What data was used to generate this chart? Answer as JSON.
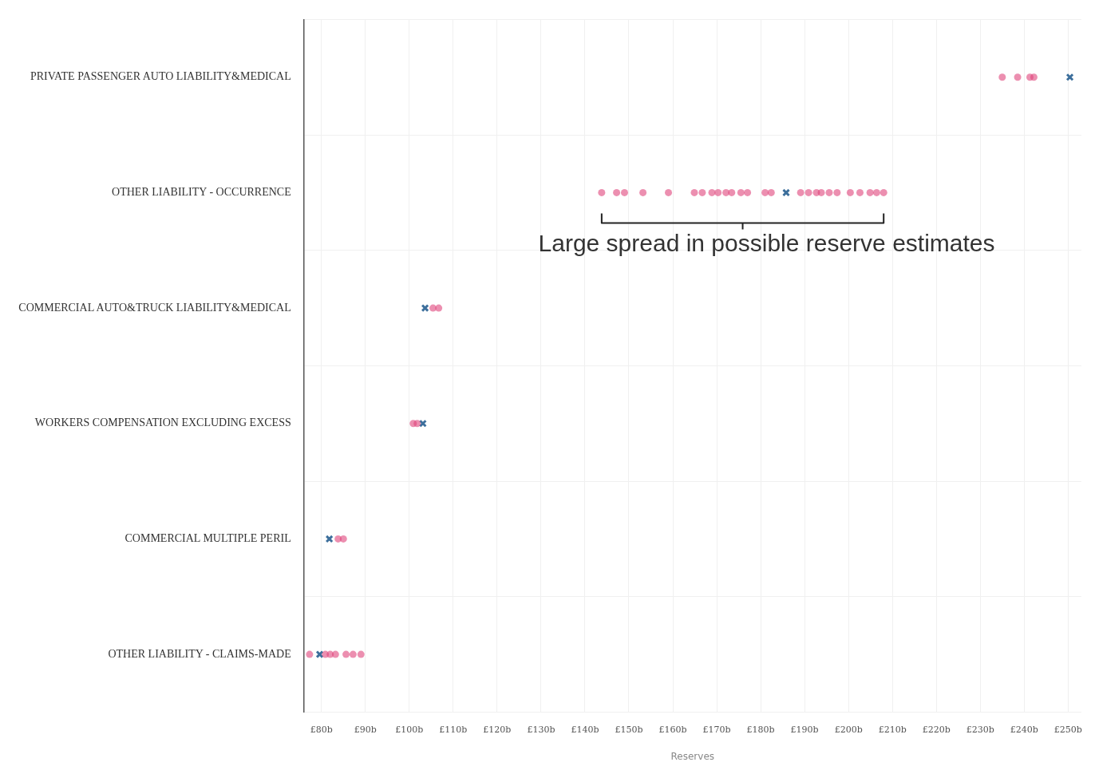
{
  "chart_data": {
    "type": "scatter",
    "orientation": "horizontal",
    "xlabel": "Reserves",
    "categories": [
      "PRIVATE PASSENGER AUTO LIABILITY&MEDICAL",
      "OTHER LIABILITY - OCCURRENCE",
      "COMMERCIAL AUTO&TRUCK LIABILITY&MEDICAL",
      "WORKERS COMPENSATION EXCLUDING EXCESS",
      "COMMERCIAL MULTIPLE PERIL",
      "OTHER LIABILITY - CLAIMS-MADE"
    ],
    "series": [
      {
        "color": "#e0457b",
        "marker": "circle",
        "x": [
          "PRIVATE PASSENGER AUTO LIABILITY&MEDICAL",
          "PRIVATE PASSENGER AUTO LIABILITY&MEDICAL",
          "PRIVATE PASSENGER AUTO LIABILITY&MEDICAL",
          "PRIVATE PASSENGER AUTO LIABILITY&MEDICAL",
          "OTHER LIABILITY - OCCURRENCE",
          "OTHER LIABILITY - OCCURRENCE",
          "OTHER LIABILITY - OCCURRENCE",
          "OTHER LIABILITY - OCCURRENCE",
          "OTHER LIABILITY - OCCURRENCE",
          "OTHER LIABILITY - OCCURRENCE",
          "OTHER LIABILITY - OCCURRENCE",
          "OTHER LIABILITY - OCCURRENCE",
          "OTHER LIABILITY - OCCURRENCE",
          "OTHER LIABILITY - OCCURRENCE",
          "OTHER LIABILITY - OCCURRENCE",
          "OTHER LIABILITY - OCCURRENCE",
          "OTHER LIABILITY - OCCURRENCE",
          "OTHER LIABILITY - OCCURRENCE",
          "OTHER LIABILITY - OCCURRENCE",
          "OTHER LIABILITY - OCCURRENCE",
          "OTHER LIABILITY - OCCURRENCE",
          "OTHER LIABILITY - OCCURRENCE",
          "OTHER LIABILITY - OCCURRENCE",
          "OTHER LIABILITY - OCCURRENCE",
          "OTHER LIABILITY - OCCURRENCE",
          "OTHER LIABILITY - OCCURRENCE",
          "OTHER LIABILITY - OCCURRENCE",
          "OTHER LIABILITY - OCCURRENCE",
          "OTHER LIABILITY - OCCURRENCE",
          "OTHER LIABILITY - OCCURRENCE",
          "COMMERCIAL AUTO&TRUCK LIABILITY&MEDICAL",
          "COMMERCIAL AUTO&TRUCK LIABILITY&MEDICAL",
          "WORKERS COMPENSATION EXCLUDING EXCESS",
          "WORKERS COMPENSATION EXCLUDING EXCESS",
          "COMMERCIAL MULTIPLE PERIL",
          "COMMERCIAL MULTIPLE PERIL",
          "OTHER LIABILITY - CLAIMS-MADE",
          "OTHER LIABILITY - CLAIMS-MADE",
          "OTHER LIABILITY - CLAIMS-MADE",
          "OTHER LIABILITY - CLAIMS-MADE",
          "OTHER LIABILITY - CLAIMS-MADE",
          "OTHER LIABILITY - CLAIMS-MADE",
          "OTHER LIABILITY - CLAIMS-MADE"
        ],
        "values": [
          235.0,
          238.5,
          241.3,
          242.2,
          143.8,
          147.2,
          149.0,
          153.2,
          159.0,
          164.9,
          166.7,
          168.9,
          170.3,
          172.1,
          173.4,
          175.5,
          177.0,
          181.0,
          182.4,
          189.1,
          190.9,
          192.7,
          193.8,
          195.6,
          197.4,
          200.4,
          202.6,
          204.9,
          206.4,
          208.0,
          105.4,
          106.7,
          100.9,
          101.8,
          83.8,
          85.0,
          77.3,
          80.9,
          82.0,
          83.2,
          85.6,
          87.2,
          89.0
        ]
      },
      {
        "color": "#3d6f9c",
        "marker": "cross",
        "x": [
          "PRIVATE PASSENGER AUTO LIABILITY&MEDICAL",
          "OTHER LIABILITY - OCCURRENCE",
          "COMMERCIAL AUTO&TRUCK LIABILITY&MEDICAL",
          "WORKERS COMPENSATION EXCLUDING EXCESS",
          "COMMERCIAL MULTIPLE PERIL",
          "OTHER LIABILITY - CLAIMS-MADE"
        ],
        "values": [
          250.4,
          185.8,
          103.6,
          103.1,
          81.8,
          79.6
        ]
      }
    ],
    "xlim": [
      76,
      253
    ],
    "xticks": [
      {
        "value": 80,
        "label": "£80b"
      },
      {
        "value": 90,
        "label": "£90b"
      },
      {
        "value": 100,
        "label": "£100b"
      },
      {
        "value": 110,
        "label": "£110b"
      },
      {
        "value": 120,
        "label": "£120b"
      },
      {
        "value": 130,
        "label": "£130b"
      },
      {
        "value": 140,
        "label": "£140b"
      },
      {
        "value": 150,
        "label": "£150b"
      },
      {
        "value": 160,
        "label": "£160b"
      },
      {
        "value": 170,
        "label": "£170b"
      },
      {
        "value": 180,
        "label": "£180b"
      },
      {
        "value": 190,
        "label": "£190b"
      },
      {
        "value": 200,
        "label": "£200b"
      },
      {
        "value": 210,
        "label": "£210b"
      },
      {
        "value": 220,
        "label": "£220b"
      },
      {
        "value": 230,
        "label": "£230b"
      },
      {
        "value": 240,
        "label": "£240b"
      },
      {
        "value": 250,
        "label": "£250b"
      }
    ],
    "grid": true,
    "annotations": [
      "Large spread in possible reserve estimates"
    ]
  }
}
